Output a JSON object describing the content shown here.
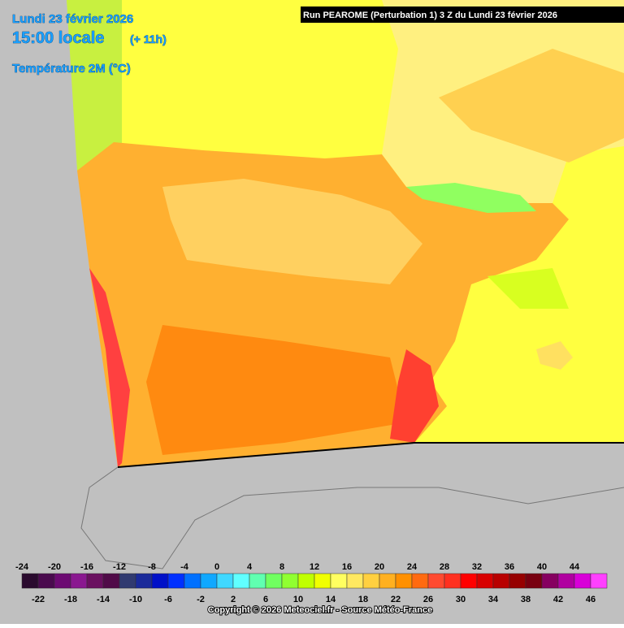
{
  "header": {
    "date": "Lundi 23 février 2026",
    "time": "15:00 locale",
    "offset": "(+ 11h)",
    "parameter": "Température 2M (°C)",
    "run": "Run PEAROME (Perturbation 1) 3 Z du Lundi 23 février 2026"
  },
  "legend": {
    "ticks": [
      -24,
      -22,
      -20,
      -18,
      -16,
      -14,
      -12,
      -10,
      -8,
      -6,
      -4,
      -2,
      0,
      2,
      4,
      6,
      8,
      10,
      12,
      14,
      16,
      18,
      20,
      22,
      24,
      26,
      28,
      30,
      32,
      34,
      36,
      38,
      40,
      42,
      44,
      46
    ],
    "colors": [
      "#2a0a2e",
      "#4a0a4e",
      "#6c0a72",
      "#8a1890",
      "#6a1060",
      "#500a48",
      "#303a70",
      "#1a2a9a",
      "#0010c8",
      "#0030ff",
      "#0070ff",
      "#10a8ff",
      "#40d8ff",
      "#60ffff",
      "#60ffb0",
      "#70ff60",
      "#90ff30",
      "#c0ff00",
      "#f0ff00",
      "#ffff60",
      "#ffe860",
      "#ffd040",
      "#ffb020",
      "#ff9000",
      "#ff6a10",
      "#ff4a30",
      "#ff3020",
      "#ff0000",
      "#d80000",
      "#b80000",
      "#960000",
      "#780010",
      "#860060",
      "#b000a0",
      "#d800d8",
      "#ff40ff"
    ]
  },
  "footer": {
    "copyright": "Copyright © 2026 Meteociel.fr - Source Météo-France"
  }
}
